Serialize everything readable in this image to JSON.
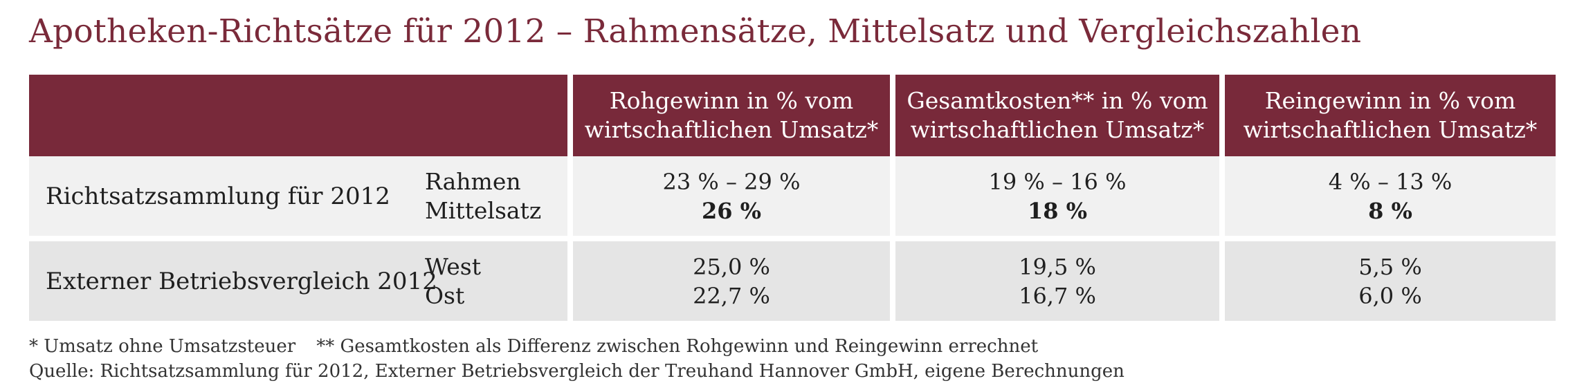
{
  "title": "Apotheken-Richtsätze für 2012 – Rahmensätze, Mittelsatz und Vergleichszahlen",
  "header": {
    "col1": [
      "Rohgewinn in % vom",
      "wirtschaftlichen Umsatz*"
    ],
    "col2": [
      "Gesamtkosten** in % vom",
      "wirtschaftlichen Umsatz*"
    ],
    "col3": [
      "Reingewinn in % vom",
      "wirtschaftlichen Umsatz*"
    ]
  },
  "rows": [
    {
      "label": "Richtsatzsammlung für 2012",
      "sub": [
        "Rahmen",
        "Mittelsatz"
      ],
      "rohgewinn": [
        "23 % – 29 %",
        "26 %"
      ],
      "gesamtkosten": [
        "19 % – 16 %",
        "18 %"
      ],
      "reingewinn": [
        "4 % – 13 %",
        "8 %"
      ]
    },
    {
      "label": "Externer Betriebsvergleich 2012",
      "sub": [
        "West",
        "Ost"
      ],
      "rohgewinn": [
        "25,0 %",
        "22,7 %"
      ],
      "gesamtkosten": [
        "19,5 %",
        "16,7 %"
      ],
      "reingewinn": [
        "5,5 %",
        "6,0 %"
      ]
    }
  ],
  "footnotes": {
    "note1": "* Umsatz ohne Umsatzsteuer",
    "note2": "** Gesamtkosten als Differenz zwischen Rohgewinn und Reingewinn errechnet",
    "source": "Quelle: Richtsatzsammlung für 2012, Externer Betriebsvergleich der Treuhand Hannover GmbH, eigene Berechnungen"
  },
  "colors": {
    "accent": "#78293a",
    "title": "#7a2a3a",
    "row1": "#f1f1f1",
    "row2": "#e5e5e5"
  }
}
